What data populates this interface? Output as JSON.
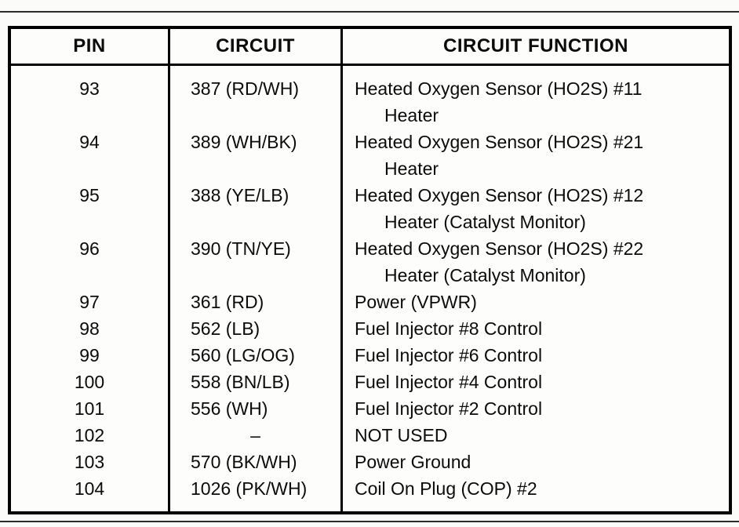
{
  "table": {
    "headers": {
      "pin": "PIN",
      "circuit": "CIRCUIT",
      "function": "CIRCUIT FUNCTION"
    },
    "rows": [
      {
        "pin": "93",
        "circuit": "387 (RD/WH)",
        "function": "Heated Oxygen Sensor (HO2S) #11",
        "function2": "Heater"
      },
      {
        "pin": "94",
        "circuit": "389 (WH/BK)",
        "function": "Heated Oxygen Sensor (HO2S) #21",
        "function2": "Heater"
      },
      {
        "pin": "95",
        "circuit": "388 (YE/LB)",
        "function": "Heated Oxygen Sensor (HO2S) #12",
        "function2": "Heater (Catalyst Monitor)"
      },
      {
        "pin": "96",
        "circuit": "390 (TN/YE)",
        "function": "Heated Oxygen Sensor (HO2S) #22",
        "function2": "Heater (Catalyst Monitor)"
      },
      {
        "pin": "97",
        "circuit": "361 (RD)",
        "function": "Power (VPWR)"
      },
      {
        "pin": "98",
        "circuit": "562 (LB)",
        "function": "Fuel Injector #8 Control"
      },
      {
        "pin": "99",
        "circuit": "560 (LG/OG)",
        "function": "Fuel Injector #6 Control"
      },
      {
        "pin": "100",
        "circuit": "558 (BN/LB)",
        "function": "Fuel Injector #4 Control"
      },
      {
        "pin": "101",
        "circuit": "556 (WH)",
        "function": "Fuel Injector #2 Control"
      },
      {
        "pin": "102",
        "circuit": "–",
        "function": "NOT USED"
      },
      {
        "pin": "103",
        "circuit": "570 (BK/WH)",
        "function": "Power Ground"
      },
      {
        "pin": "104",
        "circuit": "1026 (PK/WH)",
        "function": "Coil On Plug (COP) #2"
      }
    ]
  }
}
